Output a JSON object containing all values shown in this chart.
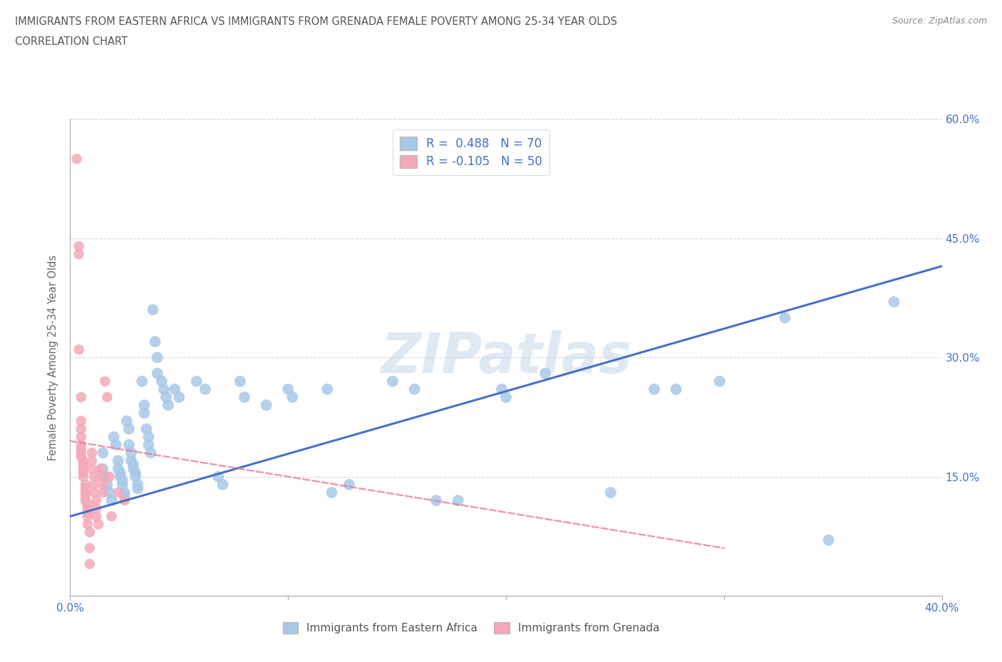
{
  "title_line1": "IMMIGRANTS FROM EASTERN AFRICA VS IMMIGRANTS FROM GRENADA FEMALE POVERTY AMONG 25-34 YEAR OLDS",
  "title_line2": "CORRELATION CHART",
  "source_text": "Source: ZipAtlas.com",
  "ylabel": "Female Poverty Among 25-34 Year Olds",
  "watermark": "ZIPatlas",
  "blue_R": 0.488,
  "blue_N": 70,
  "pink_R": -0.105,
  "pink_N": 50,
  "blue_color": "#a8c8e8",
  "pink_color": "#f4a8b8",
  "blue_line_color": "#4472c4",
  "pink_line_color": "#e87090",
  "axis_label_color": "#4472c4",
  "title_color": "#555555",
  "xlim": [
    0.0,
    0.4
  ],
  "ylim": [
    0.0,
    0.6
  ],
  "x_ticks": [
    0.0,
    0.1,
    0.2,
    0.3,
    0.4
  ],
  "x_tick_labels": [
    "0.0%",
    "",
    "",
    "",
    "40.0%"
  ],
  "y_ticks": [
    0.0,
    0.15,
    0.3,
    0.45,
    0.6
  ],
  "y_tick_labels_right": [
    "",
    "15.0%",
    "30.0%",
    "45.0%",
    "60.0%"
  ],
  "grid_color": "#cccccc",
  "background_color": "#ffffff",
  "blue_scatter": [
    [
      0.015,
      0.18
    ],
    [
      0.015,
      0.16
    ],
    [
      0.016,
      0.15
    ],
    [
      0.017,
      0.14
    ],
    [
      0.018,
      0.13
    ],
    [
      0.019,
      0.12
    ],
    [
      0.02,
      0.2
    ],
    [
      0.021,
      0.19
    ],
    [
      0.022,
      0.17
    ],
    [
      0.022,
      0.16
    ],
    [
      0.023,
      0.155
    ],
    [
      0.023,
      0.15
    ],
    [
      0.024,
      0.145
    ],
    [
      0.024,
      0.14
    ],
    [
      0.025,
      0.13
    ],
    [
      0.025,
      0.125
    ],
    [
      0.026,
      0.22
    ],
    [
      0.027,
      0.21
    ],
    [
      0.027,
      0.19
    ],
    [
      0.028,
      0.18
    ],
    [
      0.028,
      0.17
    ],
    [
      0.029,
      0.165
    ],
    [
      0.029,
      0.16
    ],
    [
      0.03,
      0.155
    ],
    [
      0.03,
      0.15
    ],
    [
      0.031,
      0.14
    ],
    [
      0.031,
      0.135
    ],
    [
      0.033,
      0.27
    ],
    [
      0.034,
      0.24
    ],
    [
      0.034,
      0.23
    ],
    [
      0.035,
      0.21
    ],
    [
      0.036,
      0.2
    ],
    [
      0.036,
      0.19
    ],
    [
      0.037,
      0.18
    ],
    [
      0.038,
      0.36
    ],
    [
      0.039,
      0.32
    ],
    [
      0.04,
      0.3
    ],
    [
      0.04,
      0.28
    ],
    [
      0.042,
      0.27
    ],
    [
      0.043,
      0.26
    ],
    [
      0.044,
      0.25
    ],
    [
      0.045,
      0.24
    ],
    [
      0.048,
      0.26
    ],
    [
      0.05,
      0.25
    ],
    [
      0.058,
      0.27
    ],
    [
      0.062,
      0.26
    ],
    [
      0.068,
      0.15
    ],
    [
      0.07,
      0.14
    ],
    [
      0.078,
      0.27
    ],
    [
      0.08,
      0.25
    ],
    [
      0.09,
      0.24
    ],
    [
      0.1,
      0.26
    ],
    [
      0.102,
      0.25
    ],
    [
      0.118,
      0.26
    ],
    [
      0.12,
      0.13
    ],
    [
      0.128,
      0.14
    ],
    [
      0.148,
      0.27
    ],
    [
      0.158,
      0.26
    ],
    [
      0.168,
      0.12
    ],
    [
      0.178,
      0.12
    ],
    [
      0.198,
      0.26
    ],
    [
      0.2,
      0.25
    ],
    [
      0.218,
      0.28
    ],
    [
      0.248,
      0.13
    ],
    [
      0.268,
      0.26
    ],
    [
      0.278,
      0.26
    ],
    [
      0.298,
      0.27
    ],
    [
      0.328,
      0.35
    ],
    [
      0.348,
      0.07
    ],
    [
      0.378,
      0.37
    ]
  ],
  "pink_scatter": [
    [
      0.003,
      0.55
    ],
    [
      0.004,
      0.44
    ],
    [
      0.004,
      0.43
    ],
    [
      0.004,
      0.31
    ],
    [
      0.005,
      0.25
    ],
    [
      0.005,
      0.22
    ],
    [
      0.005,
      0.21
    ],
    [
      0.005,
      0.2
    ],
    [
      0.005,
      0.19
    ],
    [
      0.005,
      0.185
    ],
    [
      0.005,
      0.18
    ],
    [
      0.005,
      0.175
    ],
    [
      0.006,
      0.17
    ],
    [
      0.006,
      0.165
    ],
    [
      0.006,
      0.16
    ],
    [
      0.006,
      0.155
    ],
    [
      0.006,
      0.15
    ],
    [
      0.007,
      0.14
    ],
    [
      0.007,
      0.135
    ],
    [
      0.007,
      0.13
    ],
    [
      0.007,
      0.125
    ],
    [
      0.007,
      0.12
    ],
    [
      0.008,
      0.115
    ],
    [
      0.008,
      0.11
    ],
    [
      0.008,
      0.105
    ],
    [
      0.008,
      0.1
    ],
    [
      0.008,
      0.09
    ],
    [
      0.009,
      0.08
    ],
    [
      0.009,
      0.06
    ],
    [
      0.009,
      0.04
    ],
    [
      0.01,
      0.18
    ],
    [
      0.01,
      0.17
    ],
    [
      0.01,
      0.16
    ],
    [
      0.011,
      0.15
    ],
    [
      0.011,
      0.14
    ],
    [
      0.011,
      0.13
    ],
    [
      0.012,
      0.12
    ],
    [
      0.012,
      0.11
    ],
    [
      0.012,
      0.1
    ],
    [
      0.013,
      0.09
    ],
    [
      0.014,
      0.16
    ],
    [
      0.014,
      0.15
    ],
    [
      0.015,
      0.14
    ],
    [
      0.015,
      0.13
    ],
    [
      0.016,
      0.27
    ],
    [
      0.017,
      0.25
    ],
    [
      0.018,
      0.15
    ],
    [
      0.019,
      0.1
    ],
    [
      0.022,
      0.13
    ],
    [
      0.025,
      0.12
    ]
  ],
  "blue_trend_x": [
    0.0,
    0.4
  ],
  "blue_trend_y": [
    0.1,
    0.415
  ],
  "pink_trend_x": [
    0.0,
    0.3
  ],
  "pink_trend_y": [
    0.195,
    0.06
  ],
  "legend_label_blue": "Immigrants from Eastern Africa",
  "legend_label_pink": "Immigrants from Grenada",
  "legend_R_color": "#4472c4",
  "figsize": [
    14.06,
    9.3
  ],
  "dpi": 100
}
